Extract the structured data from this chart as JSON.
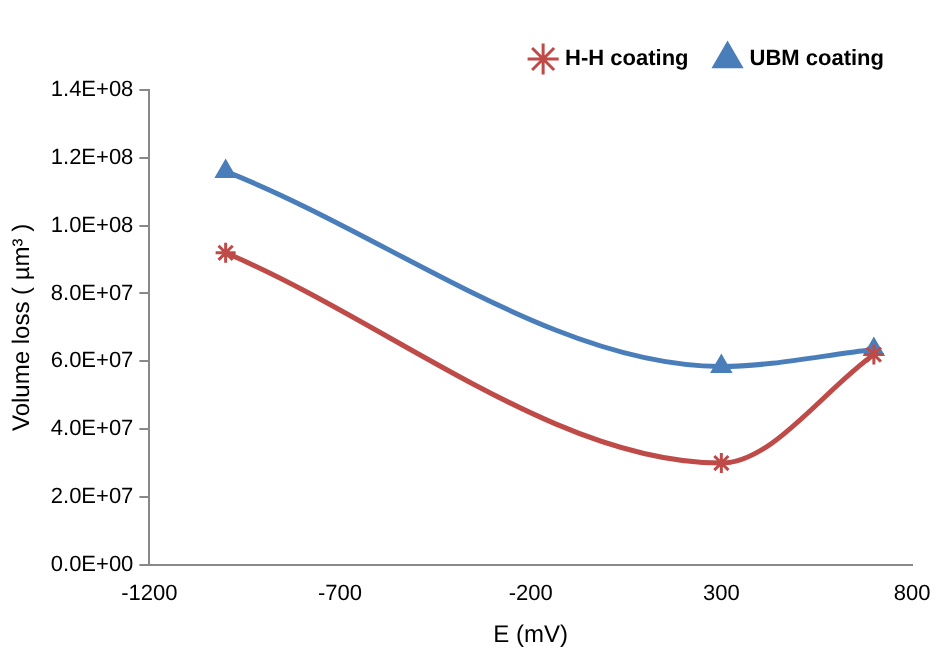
{
  "chart_data": {
    "type": "line",
    "xlabel": "E (mV)",
    "ylabel": "Volume loss ( µm³ )",
    "x": [
      -1000,
      300,
      700
    ],
    "series": [
      {
        "name": "UBM coating",
        "color": "#4a7ebb",
        "marker": "triangle",
        "values": [
          116000000,
          58500000,
          63500000
        ]
      },
      {
        "name": "H-H coating",
        "color": "#be4b48",
        "marker": "cross",
        "values": [
          92000000,
          30000000,
          62000000
        ]
      }
    ],
    "xlim": [
      -1200,
      800
    ],
    "xticks": [
      -1200,
      -700,
      -200,
      300,
      800
    ],
    "ylim": [
      0,
      140000000
    ],
    "yticks": [
      {
        "value": 0,
        "label": "0.0E+00"
      },
      {
        "value": 20000000,
        "label": "2.0E+07"
      },
      {
        "value": 40000000,
        "label": "4.0E+07"
      },
      {
        "value": 60000000,
        "label": "6.0E+07"
      },
      {
        "value": 80000000,
        "label": "8.0E+07"
      },
      {
        "value": 100000000,
        "label": "1.0E+08"
      },
      {
        "value": 120000000,
        "label": "1.2E+08"
      },
      {
        "value": 140000000,
        "label": "1.4E+08"
      }
    ],
    "grid": false,
    "legend": "top right",
    "line_style": "solid"
  }
}
